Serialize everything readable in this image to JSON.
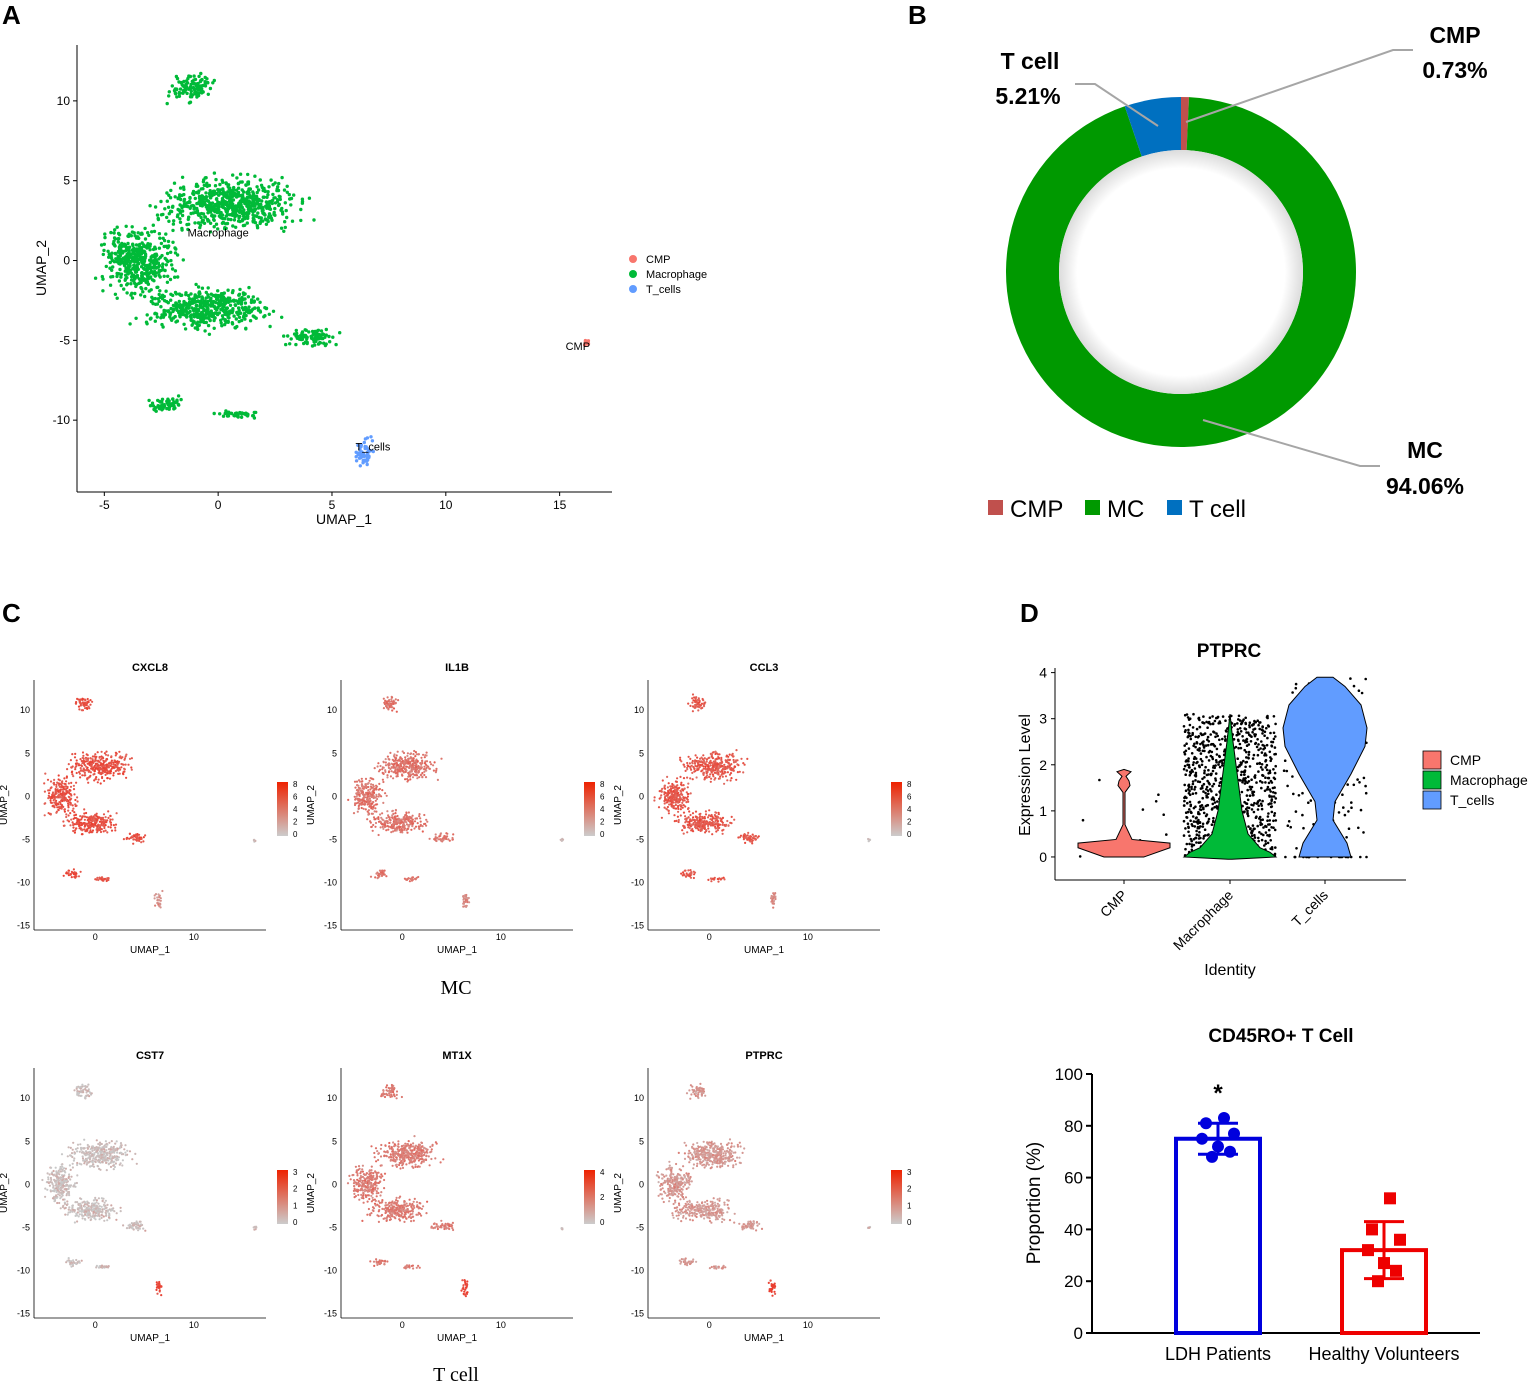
{
  "panels": {
    "a": "A",
    "b": "B",
    "c": "C",
    "d": "D"
  },
  "umap_main": {
    "xlabel": "UMAP_1",
    "ylabel": "UMAP_2",
    "xticks": [
      -5,
      0,
      5,
      10,
      15
    ],
    "yticks": [
      10,
      5,
      0,
      -5,
      -10
    ],
    "xlim": [
      -6.2,
      17.3
    ],
    "ylim": [
      -14.5,
      13.5
    ],
    "cluster_labels": [
      {
        "text": "Macrophage",
        "x": 0,
        "y": 1.5
      },
      {
        "text": "CMP",
        "x": 15.8,
        "y": -5.6
      },
      {
        "text": "T_cells",
        "x": 6.8,
        "y": -11.9
      }
    ],
    "legend": [
      {
        "label": "CMP",
        "color": "#F8766D"
      },
      {
        "label": "Macrophage",
        "color": "#00BA38"
      },
      {
        "label": "T_cells",
        "color": "#619CFF"
      }
    ]
  },
  "donut": {
    "legend": [
      "CMP",
      "MC",
      "T cell"
    ],
    "labels": [
      {
        "name": "CMP",
        "pct": "0.73%"
      },
      {
        "name": "T cell",
        "pct": "5.21%"
      },
      {
        "name": "MC",
        "pct": "94.06%"
      }
    ],
    "colors": [
      "#C0504D",
      "#009900",
      "#0070C0"
    ]
  },
  "feature_plots": {
    "group_labels": [
      "MC",
      "T cell"
    ],
    "xlabel": "UMAP_1",
    "ylabel": "UMAP_2",
    "xticks": [
      "0",
      "10"
    ],
    "yticks": [
      "10",
      "5",
      "0",
      "-5",
      "-10",
      "-15"
    ],
    "genes": [
      {
        "gene": "CXCL8",
        "scale": [
          "8",
          "6",
          "4",
          "2",
          "0"
        ],
        "intensity": 0.85
      },
      {
        "gene": "IL1B",
        "scale": [
          "8",
          "6",
          "4",
          "2",
          "0"
        ],
        "intensity": 0.6
      },
      {
        "gene": "CCL3",
        "scale": [
          "8",
          "6",
          "4",
          "2",
          "0"
        ],
        "intensity": 0.8
      },
      {
        "gene": "CST7",
        "scale": [
          "3",
          "2",
          "1",
          "0"
        ],
        "intensity": 0.08
      },
      {
        "gene": "MT1X",
        "scale": [
          "4",
          "2",
          "0"
        ],
        "intensity": 0.55
      },
      {
        "gene": "PTPRC",
        "scale": [
          "3",
          "2",
          "1",
          "0"
        ],
        "intensity": 0.35
      }
    ]
  },
  "chart_data": [
    {
      "type": "scatter",
      "title": "",
      "xlabel": "UMAP_1",
      "ylabel": "UMAP_2",
      "series": [
        {
          "name": "Macrophage",
          "color": "#00BA38",
          "clusters": [
            {
              "cx": -1.2,
              "cy": 10.8,
              "w": 2.0,
              "h": 1.8
            },
            {
              "cx": 0.5,
              "cy": 3.5,
              "w": 6.5,
              "h": 3.5
            },
            {
              "cx": -3.5,
              "cy": 0,
              "w": 3.5,
              "h": 4.5
            },
            {
              "cx": -0.5,
              "cy": -3.0,
              "w": 6.0,
              "h": 2.8
            },
            {
              "cx": 4.1,
              "cy": -4.8,
              "w": 2.4,
              "h": 1.2
            },
            {
              "cx": -2.2,
              "cy": -9.0,
              "w": 1.8,
              "h": 1.0
            },
            {
              "cx": 0.8,
              "cy": -9.6,
              "w": 2.2,
              "h": 0.5
            }
          ]
        },
        {
          "name": "CMP",
          "color": "#F8766D",
          "clusters": [
            {
              "cx": 16.2,
              "cy": -5.1,
              "w": 0.3,
              "h": 0.4
            }
          ]
        },
        {
          "name": "T_cells",
          "color": "#619CFF",
          "clusters": [
            {
              "cx": 6.4,
              "cy": -12.0,
              "w": 0.8,
              "h": 2.0
            }
          ]
        }
      ],
      "xlim": [
        -6.2,
        17.3
      ],
      "ylim": [
        -14.5,
        13.5
      ]
    },
    {
      "type": "pie",
      "title": "",
      "categories": [
        "CMP",
        "MC",
        "T cell"
      ],
      "values": [
        0.73,
        94.06,
        5.21
      ]
    },
    {
      "type": "violin",
      "title": "PTPRC",
      "xlabel": "Identity",
      "ylabel": "Expression Level",
      "categories": [
        "CMP",
        "Macrophage",
        "T_cells"
      ],
      "colors": [
        "#F8766D",
        "#00BA38",
        "#619CFF"
      ],
      "yticks": [
        0,
        1,
        2,
        3,
        4
      ],
      "ylim": [
        -0.5,
        4.1
      ],
      "legend": [
        "CMP",
        "Macrophage",
        "T_cells"
      ]
    },
    {
      "type": "bar",
      "title": "CD45RO+ T Cell",
      "xlabel": "",
      "ylabel": "Proportion (%)",
      "categories": [
        "LDH Patients",
        "Healthy Volunteers"
      ],
      "values": [
        75,
        32
      ],
      "errors": [
        6,
        11
      ],
      "points": [
        [
          83,
          81,
          77,
          75,
          72,
          70,
          68
        ],
        [
          52,
          40,
          36,
          32,
          27,
          24,
          20
        ]
      ],
      "colors": [
        "#0000DD",
        "#EE0000"
      ],
      "annotation": "*",
      "ylim": [
        0,
        100
      ],
      "yticks": [
        0,
        20,
        40,
        60,
        80,
        100
      ]
    }
  ]
}
